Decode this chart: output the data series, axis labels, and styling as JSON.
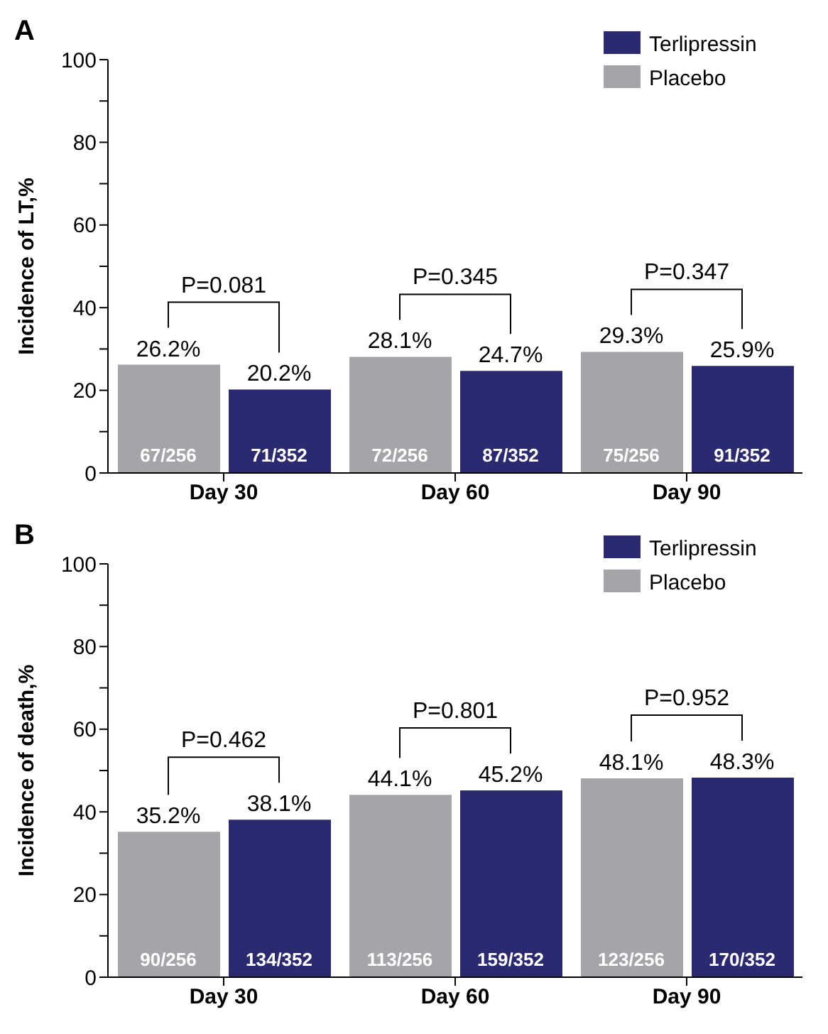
{
  "chart_data": [
    {
      "type": "bar",
      "title": "A",
      "ylabel": "Incidence of LT,%",
      "categories": [
        "Day 30",
        "Day 60",
        "Day 90"
      ],
      "series": [
        {
          "name": "Placebo",
          "color": "#a5a5a9",
          "values": [
            26.2,
            28.1,
            29.3
          ],
          "value_labels": [
            "26.2%",
            "28.1%",
            "29.3%"
          ]
        },
        {
          "name": "Terlipressin",
          "color": "#2b2a70",
          "values": [
            20.2,
            24.7,
            25.9
          ],
          "value_labels": [
            "20.2%",
            "24.7%",
            "25.9%"
          ]
        }
      ],
      "ylim": [
        0,
        100
      ],
      "yticks": [
        0,
        {
          "value": 10,
          "label": null
        },
        20,
        {
          "value": 30,
          "label": null
        },
        40,
        {
          "value": 50,
          "label": null
        },
        60,
        {
          "value": 70,
          "label": null
        },
        80,
        {
          "value": 90,
          "label": null
        },
        100
      ],
      "grid": false,
      "legend": "top right",
      "annotations": [
        "P=0.081",
        "P=0.345",
        "P=0.347",
        {
          "text": "67/256",
          "x": "Day 30",
          "y": 2
        },
        {
          "text": "71/352",
          "x": "Day 30",
          "y": 2
        },
        {
          "text": "72/256",
          "x": "Day 60",
          "y": 2
        },
        {
          "text": "87/352",
          "x": "Day 60",
          "y": 2
        },
        {
          "text": "75/256",
          "x": "Day 90",
          "y": 2
        },
        {
          "text": "91/352",
          "x": "Day 90",
          "y": 2
        }
      ]
    },
    {
      "type": "bar",
      "title": "B",
      "ylabel": "Incidence of death,%",
      "categories": [
        "Day 30",
        "Day 60",
        "Day 90"
      ],
      "series": [
        {
          "name": "Placebo",
          "color": "#a5a5a9",
          "values": [
            35.2,
            44.1,
            48.1
          ],
          "value_labels": [
            "35.2%",
            "44.1%",
            "48.1%"
          ]
        },
        {
          "name": "Terlipressin",
          "color": "#2b2a70",
          "values": [
            38.1,
            45.2,
            48.3
          ],
          "value_labels": [
            "38.1%",
            "45.2%",
            "48.3%"
          ]
        }
      ],
      "ylim": [
        0,
        100
      ],
      "yticks": [
        0,
        {
          "value": 10,
          "label": null
        },
        20,
        {
          "value": 30,
          "label": null
        },
        40,
        {
          "value": 50,
          "label": null
        },
        60,
        {
          "value": 70,
          "label": null
        },
        80,
        {
          "value": 90,
          "label": null
        },
        100
      ],
      "grid": false,
      "legend": "top right",
      "annotations": [
        "P=0.462",
        "P=0.801",
        "P=0.952",
        {
          "text": "90/256",
          "x": "Day 30",
          "y": 2
        },
        {
          "text": "134/352",
          "x": "Day 30",
          "y": 2
        },
        {
          "text": "113/256",
          "x": "Day 60",
          "y": 2
        },
        {
          "text": "159/352",
          "x": "Day 60",
          "y": 2
        },
        {
          "text": "123/256",
          "x": "Day 90",
          "y": 2
        },
        {
          "text": "170/352",
          "x": "Day 90",
          "y": 2
        }
      ]
    }
  ]
}
